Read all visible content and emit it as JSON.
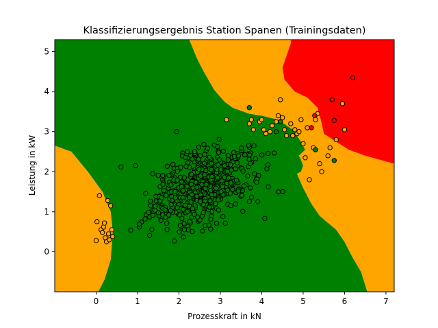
{
  "chart_data": {
    "type": "scatter",
    "title": "Klassifizierungsergebnis Station Spanen (Trainingsdaten)",
    "xlabel": "Prozesskraft in kN",
    "ylabel": "Leistung in kW",
    "xlim": [
      -1.0,
      7.2
    ],
    "ylim": [
      -1.0,
      5.3
    ],
    "xticks": [
      "0",
      "1",
      "2",
      "3",
      "4",
      "5",
      "6",
      "7"
    ],
    "yticks": [
      "0",
      "1",
      "2",
      "3",
      "4",
      "5"
    ],
    "xtick_values": [
      0,
      1,
      2,
      3,
      4,
      5,
      6,
      7
    ],
    "ytick_values": [
      0,
      1,
      2,
      3,
      4,
      5
    ],
    "grid": false,
    "legend": "none",
    "decision_regions": [
      {
        "class": "green",
        "color": "#008000",
        "polygon": [
          [
            -1.0,
            5.3
          ],
          [
            2.25,
            5.3
          ],
          [
            2.45,
            4.8
          ],
          [
            2.6,
            4.5
          ],
          [
            2.85,
            4.05
          ],
          [
            3.1,
            3.75
          ],
          [
            3.3,
            3.6
          ],
          [
            3.7,
            3.45
          ],
          [
            4.0,
            3.4
          ],
          [
            4.4,
            3.3
          ],
          [
            4.75,
            3.05
          ],
          [
            4.95,
            2.75
          ],
          [
            5.05,
            2.55
          ],
          [
            4.9,
            2.4
          ],
          [
            4.95,
            2.3
          ],
          [
            5.0,
            2.15
          ],
          [
            4.95,
            2.0
          ],
          [
            4.85,
            1.95
          ],
          [
            5.0,
            1.6
          ],
          [
            5.2,
            1.2
          ],
          [
            5.4,
            0.9
          ],
          [
            5.8,
            0.55
          ],
          [
            6.0,
            0.25
          ],
          [
            6.2,
            -0.15
          ],
          [
            6.4,
            -0.5
          ],
          [
            6.55,
            -1.0
          ],
          [
            0.05,
            -1.0
          ],
          [
            0.2,
            -0.7
          ],
          [
            0.35,
            -0.2
          ],
          [
            0.4,
            0.5
          ],
          [
            0.35,
            1.0
          ],
          [
            0.15,
            1.5
          ],
          [
            -0.2,
            2.0
          ],
          [
            -0.6,
            2.5
          ],
          [
            -1.0,
            2.65
          ]
        ]
      },
      {
        "class": "orange",
        "color": "#ffa500",
        "polygon": [
          [
            -1.0,
            -1.0
          ],
          [
            0.05,
            -1.0
          ],
          [
            0.2,
            -0.7
          ],
          [
            0.35,
            -0.2
          ],
          [
            0.4,
            0.5
          ],
          [
            0.35,
            1.0
          ],
          [
            0.15,
            1.5
          ],
          [
            -0.2,
            2.0
          ],
          [
            -0.6,
            2.5
          ],
          [
            -1.0,
            2.65
          ]
        ]
      },
      {
        "class": "orange",
        "color": "#ffa500",
        "polygon": [
          [
            2.25,
            5.3
          ],
          [
            4.7,
            5.3
          ],
          [
            4.7,
            5.2
          ],
          [
            4.6,
            4.9
          ],
          [
            4.5,
            4.6
          ],
          [
            4.55,
            4.3
          ],
          [
            4.8,
            4.0
          ],
          [
            5.1,
            3.85
          ],
          [
            5.35,
            3.6
          ],
          [
            5.45,
            3.2
          ],
          [
            5.5,
            2.95
          ],
          [
            5.8,
            2.75
          ],
          [
            6.1,
            2.55
          ],
          [
            6.5,
            2.4
          ],
          [
            7.2,
            2.2
          ],
          [
            7.2,
            -1.0
          ],
          [
            6.55,
            -1.0
          ],
          [
            6.4,
            -0.5
          ],
          [
            6.2,
            -0.15
          ],
          [
            6.0,
            0.25
          ],
          [
            5.8,
            0.55
          ],
          [
            5.4,
            0.9
          ],
          [
            5.2,
            1.2
          ],
          [
            5.0,
            1.6
          ],
          [
            4.85,
            1.95
          ],
          [
            4.95,
            2.0
          ],
          [
            5.0,
            2.15
          ],
          [
            4.95,
            2.3
          ],
          [
            4.9,
            2.4
          ],
          [
            5.05,
            2.55
          ],
          [
            4.95,
            2.75
          ],
          [
            4.75,
            3.05
          ],
          [
            4.4,
            3.3
          ],
          [
            4.0,
            3.4
          ],
          [
            3.7,
            3.45
          ],
          [
            3.3,
            3.6
          ],
          [
            3.1,
            3.75
          ],
          [
            2.85,
            4.05
          ],
          [
            2.6,
            4.5
          ],
          [
            2.45,
            4.8
          ]
        ]
      },
      {
        "class": "red",
        "color": "#ff0000",
        "polygon": [
          [
            4.7,
            5.3
          ],
          [
            7.2,
            5.3
          ],
          [
            7.2,
            2.2
          ],
          [
            6.5,
            2.4
          ],
          [
            6.1,
            2.55
          ],
          [
            5.8,
            2.75
          ],
          [
            5.5,
            2.95
          ],
          [
            5.45,
            3.2
          ],
          [
            5.35,
            3.6
          ],
          [
            5.1,
            3.85
          ],
          [
            4.8,
            4.0
          ],
          [
            4.55,
            4.3
          ],
          [
            4.5,
            4.6
          ],
          [
            4.6,
            4.9
          ],
          [
            4.7,
            5.2
          ]
        ]
      }
    ],
    "marker_colors": {
      "green": "#008000",
      "orange": "#ffa500",
      "red": "#ff0000",
      "edge": "#000000"
    },
    "series": [
      {
        "class": "green",
        "color": "#008000",
        "points": []
      },
      {
        "class": "orange",
        "color": "#ffa500",
        "points": [
          [
            0.0,
            0.28
          ],
          [
            0.02,
            0.75
          ],
          [
            0.08,
            1.4
          ],
          [
            0.12,
            0.55
          ],
          [
            0.15,
            0.48
          ],
          [
            0.18,
            0.62
          ],
          [
            0.2,
            0.72
          ],
          [
            0.22,
            0.35
          ],
          [
            0.25,
            0.25
          ],
          [
            0.28,
            1.28
          ],
          [
            0.3,
            0.45
          ],
          [
            0.32,
            0.3
          ],
          [
            0.35,
            1.15
          ],
          [
            0.38,
            0.55
          ],
          [
            0.4,
            0.38
          ],
          [
            3.15,
            3.3
          ],
          [
            3.7,
            3.2
          ],
          [
            3.75,
            3.3
          ],
          [
            3.8,
            3.05
          ],
          [
            3.95,
            3.25
          ],
          [
            4.0,
            3.3
          ],
          [
            4.05,
            3.05
          ],
          [
            4.1,
            2.95
          ],
          [
            4.2,
            3.0
          ],
          [
            4.25,
            3.15
          ],
          [
            4.35,
            3.25
          ],
          [
            4.4,
            3.4
          ],
          [
            4.45,
            3.8
          ],
          [
            4.5,
            3.35
          ],
          [
            4.55,
            3.05
          ],
          [
            4.6,
            2.9
          ],
          [
            4.7,
            3.2
          ],
          [
            4.75,
            2.9
          ],
          [
            4.8,
            3.05
          ],
          [
            4.85,
            2.95
          ],
          [
            4.9,
            3.0
          ],
          [
            4.95,
            3.3
          ],
          [
            5.0,
            2.7
          ],
          [
            5.05,
            2.35
          ],
          [
            5.1,
            3.1
          ],
          [
            5.15,
            1.8
          ],
          [
            5.25,
            2.6
          ],
          [
            5.3,
            3.3
          ],
          [
            5.35,
            3.45
          ],
          [
            5.4,
            2.2
          ],
          [
            5.45,
            2.0
          ],
          [
            5.6,
            2.4
          ],
          [
            5.65,
            2.6
          ],
          [
            5.8,
            2.8
          ],
          [
            5.95,
            3.7
          ],
          [
            6.0,
            3.05
          ]
        ]
      },
      {
        "class": "red",
        "color": "#ff0000",
        "points": [
          [
            5.2,
            3.1
          ],
          [
            5.28,
            3.4
          ],
          [
            5.7,
            3.8
          ],
          [
            6.2,
            4.35
          ],
          [
            5.75,
            3.28
          ]
        ]
      },
      {
        "class": "green-outliers",
        "color": "#008000",
        "points": [
          [
            3.7,
            3.6
          ],
          [
            4.35,
            3.0
          ],
          [
            4.45,
            3.25
          ],
          [
            5.3,
            2.55
          ],
          [
            5.75,
            2.28
          ],
          [
            1.95,
            3.0
          ],
          [
            0.6,
            2.12
          ],
          [
            0.95,
            2.15
          ]
        ]
      }
    ],
    "green_cluster": {
      "count": 560,
      "center": [
        2.55,
        1.6
      ],
      "spread": [
        0.95,
        0.55
      ],
      "rotation_deg": 30,
      "seed": 7
    }
  }
}
